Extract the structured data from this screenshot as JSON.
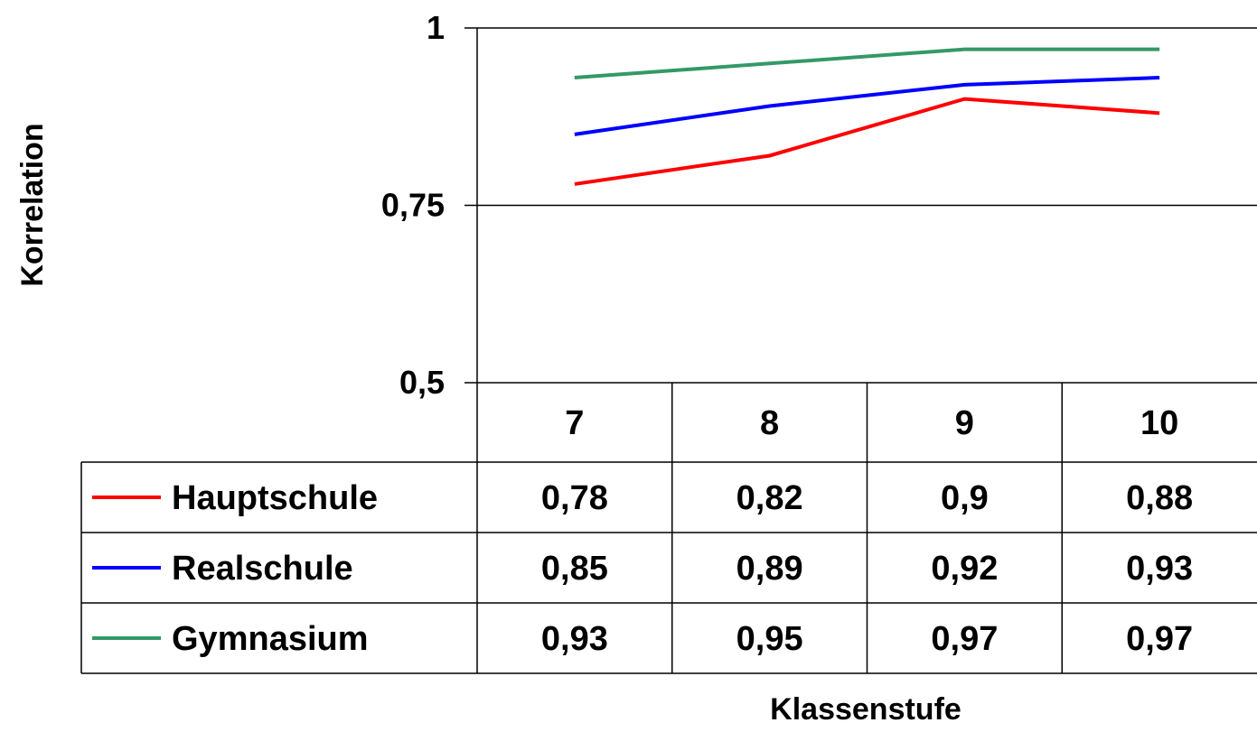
{
  "chart_data": {
    "type": "line",
    "categories": [
      "7",
      "8",
      "9",
      "10"
    ],
    "series": [
      {
        "name": "Hauptschule",
        "color": "#ff0000",
        "values": [
          0.78,
          0.82,
          0.9,
          0.88
        ],
        "labels": [
          "0,78",
          "0,82",
          "0,9",
          "0,88"
        ]
      },
      {
        "name": "Realschule",
        "color": "#0000ff",
        "values": [
          0.85,
          0.89,
          0.92,
          0.93
        ],
        "labels": [
          "0,85",
          "0,89",
          "0,92",
          "0,93"
        ]
      },
      {
        "name": "Gymnasium",
        "color": "#339966",
        "values": [
          0.93,
          0.95,
          0.97,
          0.97
        ],
        "labels": [
          "0,93",
          "0,95",
          "0,97",
          "0,97"
        ]
      }
    ],
    "ylim": [
      0.5,
      1
    ],
    "yticks": [
      0.5,
      0.75,
      1
    ],
    "ytick_labels": [
      "0,5",
      "0,75",
      "1"
    ],
    "xlabel": "Klassenstufe",
    "ylabel": "Korrelation",
    "grid": true,
    "legend": "data-table"
  }
}
